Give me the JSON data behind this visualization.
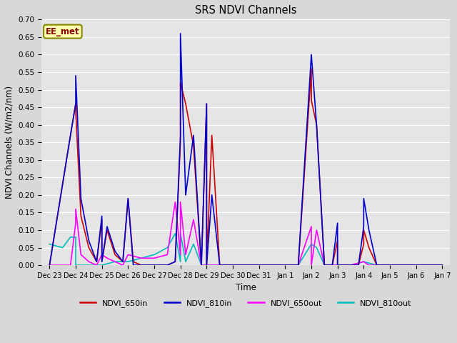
{
  "title": "SRS NDVI Channels",
  "xlabel": "Time",
  "ylabel": "NDVI Channels (W/m2/nm)",
  "annotation": "EE_met",
  "ylim": [
    0.0,
    0.7
  ],
  "xlim": [
    -0.3,
    15.3
  ],
  "yticks": [
    0.0,
    0.05,
    0.1,
    0.15,
    0.2,
    0.25,
    0.3,
    0.35,
    0.4,
    0.45,
    0.5,
    0.55,
    0.6,
    0.65,
    0.7
  ],
  "xtick_labels": [
    "Dec 23",
    "Dec 24",
    "Dec 25",
    "Dec 26",
    "Dec 27",
    "Dec 28",
    "Dec 29",
    "Dec 30",
    "Dec 31",
    "Jan 1",
    "Jan 2",
    "Jan 3",
    "Jan 4",
    "Jan 5",
    "Jan 6",
    "Jan 7"
  ],
  "bg_color": "#e5e5e5",
  "legend": [
    {
      "label": "NDVI_650in",
      "color": "#cc0000"
    },
    {
      "label": "NDVI_810in",
      "color": "#0000cc"
    },
    {
      "label": "NDVI_650out",
      "color": "#ff00ff"
    },
    {
      "label": "NDVI_810out",
      "color": "#00bbbb"
    }
  ],
  "NDVI_650in_x": [
    0.0,
    0.8,
    1.0,
    1.0,
    1.2,
    1.5,
    1.8,
    2.0,
    2.0,
    2.2,
    2.5,
    2.8,
    3.0,
    3.2,
    3.5,
    4.0,
    4.5,
    4.8,
    5.0,
    5.0,
    5.2,
    5.5,
    5.8,
    6.0,
    6.0,
    6.2,
    6.5,
    7.0,
    7.5,
    8.0,
    8.5,
    9.0,
    9.5,
    10.0,
    10.0,
    10.2,
    10.5,
    10.8,
    11.0,
    11.0,
    11.2,
    11.5,
    11.8,
    12.0,
    12.0,
    12.2,
    12.5,
    12.8,
    13.0,
    13.5,
    14.0,
    14.5,
    15.0
  ],
  "NDVI_650in_y": [
    0.0,
    0.37,
    0.46,
    0.44,
    0.14,
    0.05,
    0.01,
    0.13,
    0.01,
    0.1,
    0.03,
    0.01,
    0.19,
    0.01,
    0.0,
    0.0,
    0.0,
    0.01,
    0.35,
    0.52,
    0.46,
    0.34,
    0.0,
    0.46,
    0.0,
    0.37,
    0.0,
    0.0,
    0.0,
    0.0,
    0.0,
    0.0,
    0.0,
    0.56,
    0.47,
    0.4,
    0.0,
    0.0,
    0.07,
    0.0,
    0.0,
    0.0,
    0.0,
    0.06,
    0.1,
    0.05,
    0.0,
    0.0,
    0.0,
    0.0,
    0.0,
    0.0,
    0.0
  ],
  "NDVI_810in_x": [
    0.0,
    0.8,
    1.0,
    1.0,
    1.2,
    1.5,
    1.8,
    2.0,
    2.0,
    2.2,
    2.5,
    2.8,
    3.0,
    3.2,
    4.0,
    4.5,
    4.8,
    5.0,
    5.0,
    5.2,
    5.5,
    5.8,
    6.0,
    6.0,
    6.2,
    6.5,
    7.0,
    7.5,
    8.0,
    8.5,
    9.0,
    9.5,
    10.0,
    10.0,
    10.2,
    10.5,
    10.8,
    11.0,
    11.0,
    11.2,
    11.5,
    11.8,
    12.0,
    12.0,
    12.2,
    12.5,
    12.8,
    13.0,
    13.5,
    14.0,
    14.5,
    15.0
  ],
  "NDVI_810in_y": [
    0.0,
    0.37,
    0.46,
    0.54,
    0.19,
    0.07,
    0.01,
    0.14,
    0.01,
    0.11,
    0.04,
    0.01,
    0.19,
    0.0,
    0.0,
    0.0,
    0.01,
    0.37,
    0.66,
    0.2,
    0.37,
    0.0,
    0.46,
    0.0,
    0.2,
    0.0,
    0.0,
    0.0,
    0.0,
    0.0,
    0.0,
    0.0,
    0.6,
    0.6,
    0.4,
    0.0,
    0.0,
    0.12,
    0.0,
    0.0,
    0.0,
    0.0,
    0.11,
    0.19,
    0.1,
    0.0,
    0.0,
    0.0,
    0.0,
    0.0,
    0.0,
    0.0
  ],
  "NDVI_650out_x": [
    0.0,
    0.8,
    1.0,
    1.0,
    1.2,
    1.5,
    1.8,
    2.0,
    2.2,
    2.5,
    2.8,
    3.0,
    3.5,
    4.0,
    4.5,
    4.8,
    5.0,
    5.0,
    5.2,
    5.5,
    5.8,
    6.0,
    6.5,
    7.0,
    7.5,
    8.0,
    8.5,
    9.0,
    9.5,
    10.0,
    10.0,
    10.2,
    10.5,
    10.8,
    11.0,
    11.2,
    11.5,
    12.0,
    12.2,
    12.5,
    13.0,
    14.0,
    15.0
  ],
  "NDVI_650out_y": [
    0.0,
    0.0,
    0.12,
    0.16,
    0.03,
    0.01,
    0.0,
    0.03,
    0.02,
    0.01,
    0.0,
    0.03,
    0.02,
    0.02,
    0.03,
    0.18,
    0.03,
    0.18,
    0.03,
    0.13,
    0.0,
    0.0,
    0.0,
    0.0,
    0.0,
    0.0,
    0.0,
    0.0,
    0.0,
    0.11,
    0.0,
    0.1,
    0.0,
    0.0,
    0.0,
    0.0,
    0.0,
    0.01,
    0.0,
    0.0,
    0.0,
    0.0,
    0.0
  ],
  "NDVI_810out_x": [
    0.0,
    0.5,
    0.8,
    1.0,
    1.0,
    1.2,
    1.5,
    2.0,
    2.5,
    3.0,
    3.5,
    4.0,
    4.5,
    4.8,
    5.0,
    5.0,
    5.2,
    5.5,
    5.8,
    6.0,
    6.5,
    7.0,
    7.5,
    8.0,
    8.5,
    9.0,
    9.5,
    10.0,
    10.2,
    10.5,
    10.8,
    11.0,
    11.5,
    12.0,
    12.5,
    13.0,
    14.0,
    15.0
  ],
  "NDVI_810out_y": [
    0.06,
    0.05,
    0.08,
    0.08,
    0.0,
    0.0,
    0.0,
    0.0,
    0.01,
    0.01,
    0.02,
    0.03,
    0.05,
    0.09,
    0.01,
    0.09,
    0.01,
    0.06,
    0.0,
    0.0,
    0.0,
    0.0,
    0.0,
    0.0,
    0.0,
    0.0,
    0.0,
    0.06,
    0.05,
    0.0,
    0.0,
    0.0,
    0.0,
    0.01,
    0.0,
    0.0,
    0.0,
    0.0
  ]
}
